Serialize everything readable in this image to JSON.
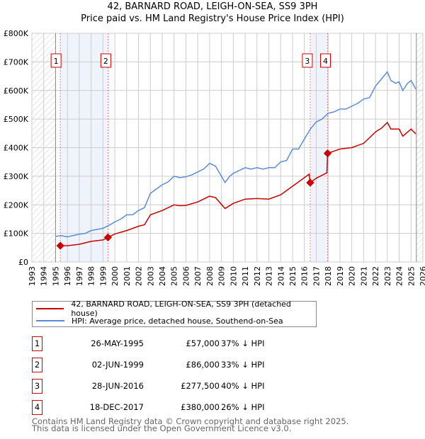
{
  "chart_data": {
    "type": "line",
    "title": "42, BARNARD ROAD, LEIGH-ON-SEA, SS9 3PH",
    "subtitle": "Price paid vs. HM Land Registry's House Price Index (HPI)",
    "xlim": [
      1993,
      2026
    ],
    "ylim": [
      0,
      800000
    ],
    "x_ticks": [
      "1993",
      "1994",
      "1995",
      "1996",
      "1997",
      "1998",
      "1999",
      "2000",
      "2001",
      "2002",
      "2003",
      "2004",
      "2005",
      "2006",
      "2007",
      "2008",
      "2009",
      "2010",
      "2011",
      "2012",
      "2013",
      "2014",
      "2015",
      "2016",
      "2017",
      "2018",
      "2019",
      "2020",
      "2021",
      "2022",
      "2023",
      "2024",
      "2025",
      "2026"
    ],
    "y_ticks": [
      {
        "v": 0,
        "label": "£0"
      },
      {
        "v": 100000,
        "label": "£100K"
      },
      {
        "v": 200000,
        "label": "£200K"
      },
      {
        "v": 300000,
        "label": "£300K"
      },
      {
        "v": 400000,
        "label": "£400K"
      },
      {
        "v": 500000,
        "label": "£500K"
      },
      {
        "v": 600000,
        "label": "£600K"
      },
      {
        "v": 700000,
        "label": "£700K"
      },
      {
        "v": 800000,
        "label": "£800K"
      }
    ],
    "hatched": [
      [
        1993,
        1995.0
      ],
      [
        2025.45,
        2026
      ]
    ],
    "shaded": [
      [
        1995.4,
        1999.42
      ],
      [
        2016.49,
        2017.96
      ]
    ],
    "series": [
      {
        "name": "42, BARNARD ROAD, LEIGH-ON-SEA, SS9 3PH (detached house)",
        "color": "#cc0000",
        "x": [
          1995.4,
          1996,
          1997,
          1998,
          1999,
          1999.42,
          2000,
          2001,
          2002,
          2002.5,
          2003,
          2004,
          2005,
          2005.5,
          2006,
          2007,
          2008,
          2008.5,
          2009.3,
          2010,
          2011,
          2012,
          2013,
          2014,
          2015,
          2016,
          2016.4,
          2016.49,
          2017,
          2017.9,
          2017.96,
          2019,
          2020,
          2021,
          2022,
          2022.5,
          2023,
          2023.3,
          2024,
          2024.3,
          2025,
          2025.4
        ],
        "values": [
          57000,
          57000,
          62000,
          72000,
          77000,
          86000,
          98000,
          110000,
          125000,
          130000,
          165000,
          180000,
          200000,
          197000,
          198000,
          210000,
          230000,
          225000,
          187000,
          205000,
          220000,
          222000,
          220000,
          235000,
          265000,
          295000,
          307000,
          277500,
          293000,
          312000,
          380000,
          395000,
          400000,
          415000,
          455000,
          468000,
          488000,
          465000,
          465000,
          440000,
          465000,
          448000
        ]
      },
      {
        "name": "HPI: Average price, detached house, Southend-on-Sea",
        "color": "#5b8dd6",
        "x": [
          1995,
          1995.5,
          1996,
          1997,
          1997.5,
          1998,
          1999,
          1999.5,
          2000,
          2000.5,
          2001,
          2001.5,
          2002,
          2002.5,
          2003,
          2003.5,
          2004,
          2004.5,
          2005,
          2005.5,
          2006,
          2006.5,
          2007,
          2007.5,
          2008,
          2008.5,
          2009,
          2009.3,
          2009.7,
          2010,
          2010.5,
          2011,
          2011.5,
          2012,
          2012.5,
          2013,
          2013.5,
          2014,
          2014.5,
          2015,
          2015.5,
          2016,
          2016.5,
          2017,
          2017.5,
          2018,
          2018.5,
          2019,
          2019.5,
          2020,
          2020.5,
          2021,
          2021.5,
          2022,
          2022.5,
          2023,
          2023.3,
          2023.7,
          2024,
          2024.3,
          2024.7,
          2025,
          2025.4
        ],
        "values": [
          90000,
          92000,
          88000,
          97000,
          100000,
          110000,
          118000,
          128000,
          140000,
          150000,
          165000,
          165000,
          180000,
          190000,
          240000,
          255000,
          270000,
          280000,
          300000,
          295000,
          298000,
          305000,
          315000,
          325000,
          345000,
          335000,
          300000,
          278000,
          300000,
          310000,
          320000,
          330000,
          325000,
          330000,
          325000,
          330000,
          330000,
          350000,
          355000,
          395000,
          395000,
          430000,
          465000,
          490000,
          500000,
          520000,
          525000,
          535000,
          535000,
          545000,
          555000,
          570000,
          575000,
          615000,
          640000,
          665000,
          635000,
          625000,
          630000,
          600000,
          625000,
          635000,
          605000
        ]
      }
    ],
    "sales": [
      {
        "label": "1",
        "x": 1995.4,
        "value": 57000,
        "date": "26-MAY-1995",
        "price": "£57,000",
        "hpi": "37% ↓ HPI"
      },
      {
        "label": "2",
        "x": 1999.42,
        "value": 86000,
        "date": "02-JUN-1999",
        "price": "£86,000",
        "hpi": "33% ↓ HPI"
      },
      {
        "label": "3",
        "x": 2016.49,
        "value": 277500,
        "date": "28-JUN-2016",
        "price": "£277,500",
        "hpi": "40% ↓ HPI"
      },
      {
        "label": "4",
        "x": 2017.96,
        "value": 380000,
        "date": "18-DEC-2017",
        "price": "£380,000",
        "hpi": "26% ↓ HPI"
      }
    ]
  },
  "footer": {
    "line1": "Contains HM Land Registry data © Crown copyright and database right 2025.",
    "line2": "This data is licensed under the Open Government Licence v3.0."
  }
}
